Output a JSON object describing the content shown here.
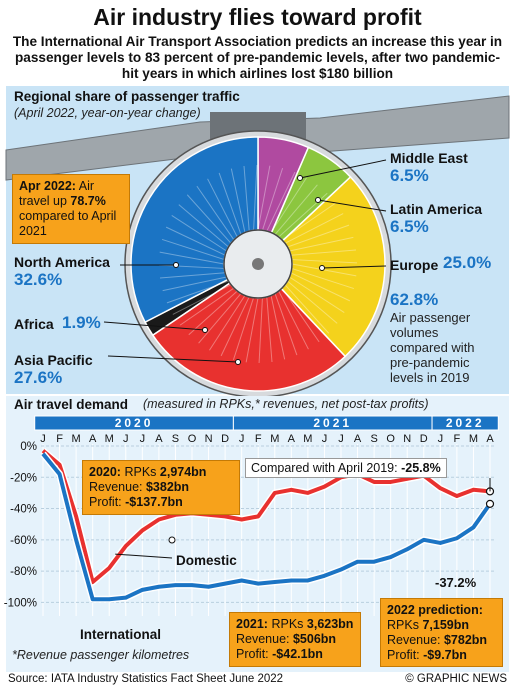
{
  "title": "Air industry flies toward profit",
  "subtitle": "The International Air Transport Association predicts an increase this year in passenger levels to 83 percent of pre-pandemic levels, after two pandemic-hit years in which airlines lost $180 billion",
  "regional": {
    "title": "Regional share of passenger traffic",
    "subtitle": "(April 2022, year-on-year change)",
    "callout_prefix": "Apr 2022:",
    "callout_mid": " Air travel up ",
    "callout_value": "78.7%",
    "callout_suffix": " compared to April 2021",
    "summary_value": "62.8%",
    "summary_text": "Air passenger volumes compared with pre-pandemic levels in 2019"
  },
  "colors": {
    "north_america": "#1b74c4",
    "africa": "#1a1a1a",
    "asia_pacific": "#e8312f",
    "europe": "#f4d21c",
    "latin_america": "#8cc63f",
    "middle_east": "#b04aa0",
    "international": "#1b74c4",
    "domestic": "#e8312f",
    "callout": "#f7a21b"
  },
  "chart_data": [
    {
      "type": "pie",
      "title": "Regional share of passenger traffic",
      "labels": [
        "Middle East",
        "Latin America",
        "Europe",
        "Asia Pacific",
        "Africa",
        "North America"
      ],
      "values": [
        6.5,
        6.5,
        25.0,
        27.6,
        1.9,
        32.6
      ],
      "value_labels": [
        "6.5%",
        "6.5%",
        "25.0%",
        "27.6%",
        "1.9%",
        "32.6%"
      ]
    },
    {
      "type": "line",
      "title": "Air travel demand",
      "title_note": "(measured in RPKs,* revenues, net post-tax profits)",
      "years": [
        "2020",
        "2021",
        "2022"
      ],
      "x": [
        "J",
        "F",
        "M",
        "A",
        "M",
        "J",
        "J",
        "A",
        "S",
        "O",
        "N",
        "D",
        "J",
        "F",
        "M",
        "A",
        "M",
        "J",
        "J",
        "A",
        "S",
        "O",
        "N",
        "D",
        "J",
        "F",
        "M",
        "A"
      ],
      "yticks": [
        "0%",
        "-20%",
        "-40%",
        "-60%",
        "-80%",
        "-100%"
      ],
      "ylim": [
        -110,
        0
      ],
      "grid": true,
      "series": [
        {
          "name": "Domestic",
          "values": [
            -3,
            -12,
            -45,
            -87,
            -78,
            -64,
            -54,
            -47,
            -44,
            -43,
            -44,
            -45,
            -47,
            -45,
            -30,
            -28,
            -30,
            -26,
            -20,
            -18,
            -23,
            -23,
            -21,
            -19,
            -27,
            -32,
            -28,
            -29
          ]
        },
        {
          "name": "International",
          "values": [
            -5,
            -18,
            -60,
            -98,
            -98,
            -97,
            -92,
            -90,
            -89,
            -89,
            -90,
            -88,
            -86,
            -88,
            -87,
            -86,
            -86,
            -83,
            -79,
            -74,
            -74,
            -71,
            -66,
            -60,
            -62,
            -59,
            -52,
            -37
          ]
        }
      ],
      "annotations": {
        "compared": "Compared with April 2019:",
        "compared_value": "-25.8%",
        "end_international": "-37.2%"
      },
      "footnote": "*Revenue passenger kilometres"
    }
  ],
  "boxes": {
    "y2020": {
      "year": "2020:",
      "rpk_label": " RPKs ",
      "rpk": "2,974bn",
      "rev_label": "Revenue: ",
      "rev": "$382bn",
      "profit_label": "Profit: ",
      "profit": "-$137.7bn"
    },
    "y2021": {
      "year": "2021:",
      "rpk_label": " RPKs ",
      "rpk": "3,623bn",
      "rev_label": "Revenue: ",
      "rev": "$506bn",
      "profit_label": "Profit: ",
      "profit": "-$42.1bn"
    },
    "y2022": {
      "year": "2022 prediction:",
      "rpk_label": "RPKs ",
      "rpk": "7,159bn",
      "rev_label": "Revenue: ",
      "rev": "$782bn",
      "profit_label": "Profit: ",
      "profit": "-$9.7bn"
    }
  },
  "footer": {
    "source": "Source: IATA Industry Statistics Fact Sheet June 2022",
    "credit": "© GRAPHIC NEWS"
  }
}
